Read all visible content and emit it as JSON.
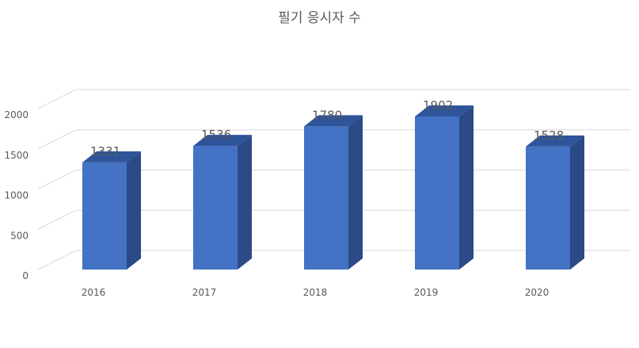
{
  "chart_data": {
    "type": "bar",
    "title": "필기 응시자 수",
    "categories": [
      "2016",
      "2017",
      "2018",
      "2019",
      "2020"
    ],
    "values": [
      1331,
      1536,
      1780,
      1902,
      1528
    ],
    "data_labels": [
      "1331",
      "1536",
      "1780",
      "1902",
      "1528"
    ],
    "ylim": [
      0,
      2000
    ],
    "yticks": [
      0,
      500,
      1000,
      1500,
      2000
    ],
    "ytick_labels": [
      "0",
      "500",
      "1000",
      "1500",
      "2000"
    ],
    "xlabel": "",
    "ylabel": "",
    "grid": true,
    "legend": "none",
    "style": "3d-column",
    "colors": {
      "bar_front": "#4472c4",
      "bar_top": "#2f549a",
      "bar_side": "#2b4a86",
      "grid": "#d9d9d9",
      "text": "#595959"
    }
  }
}
